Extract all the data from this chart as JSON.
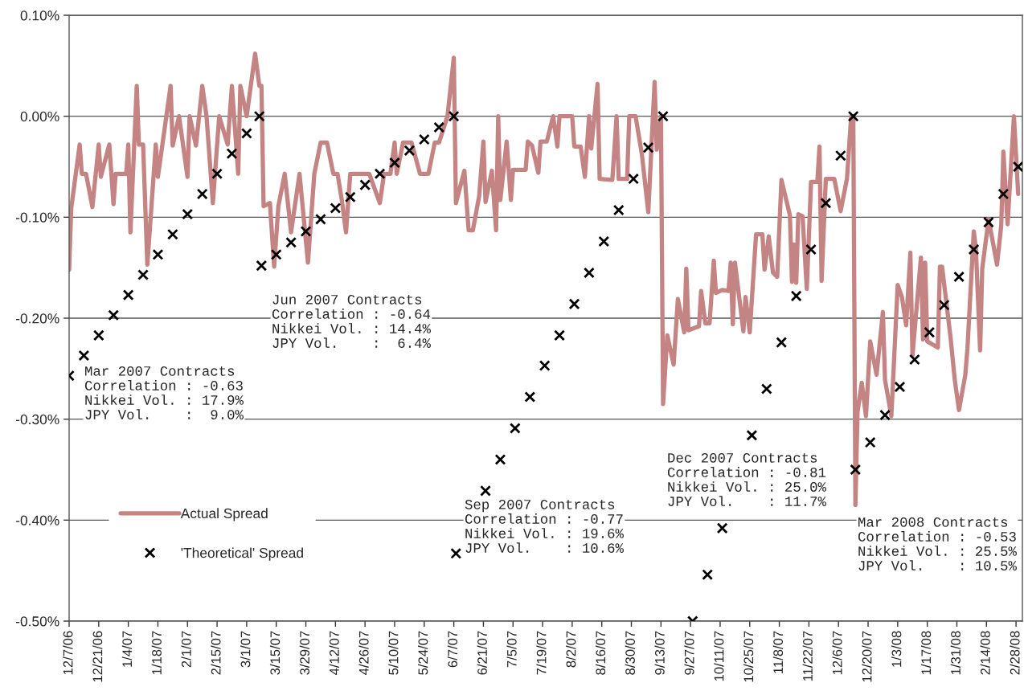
{
  "chart_data": {
    "type": "line",
    "ylim": [
      -0.5,
      0.1
    ],
    "yticks": [
      {
        "value": -0.5,
        "label": "-0.50%"
      },
      {
        "value": -0.4,
        "label": "-0.40%"
      },
      {
        "value": -0.3,
        "label": "-0.30%"
      },
      {
        "value": -0.2,
        "label": "-0.20%"
      },
      {
        "value": -0.1,
        "label": "-0.10%"
      },
      {
        "value": 0,
        "label": "0.00%"
      },
      {
        "value": 0.1,
        "label": "0.10%"
      }
    ],
    "xlim": [
      "2006-12-07",
      "2008-03-02"
    ],
    "xticks": [
      {
        "value": "2006-12-07",
        "label": "12/7/06"
      },
      {
        "value": "2006-12-21",
        "label": "12/21/06"
      },
      {
        "value": "2007-01-04",
        "label": "1/4/07"
      },
      {
        "value": "2007-01-18",
        "label": "1/18/07"
      },
      {
        "value": "2007-02-01",
        "label": "2/1/07"
      },
      {
        "value": "2007-02-15",
        "label": "2/15/07"
      },
      {
        "value": "2007-03-01",
        "label": "3/1/07"
      },
      {
        "value": "2007-03-15",
        "label": "3/15/07"
      },
      {
        "value": "2007-03-29",
        "label": "3/29/07"
      },
      {
        "value": "2007-04-12",
        "label": "4/12/07"
      },
      {
        "value": "2007-04-26",
        "label": "4/26/07"
      },
      {
        "value": "2007-05-10",
        "label": "5/10/07"
      },
      {
        "value": "2007-05-24",
        "label": "5/24/07"
      },
      {
        "value": "2007-06-07",
        "label": "6/7/07"
      },
      {
        "value": "2007-06-21",
        "label": "6/21/07"
      },
      {
        "value": "2007-07-05",
        "label": "7/5/07"
      },
      {
        "value": "2007-07-19",
        "label": "7/19/07"
      },
      {
        "value": "2007-08-02",
        "label": "8/2/07"
      },
      {
        "value": "2007-08-16",
        "label": "8/16/07"
      },
      {
        "value": "2007-08-30",
        "label": "8/30/07"
      },
      {
        "value": "2007-09-13",
        "label": "9/13/07"
      },
      {
        "value": "2007-09-27",
        "label": "9/27/07"
      },
      {
        "value": "2007-10-11",
        "label": "10/11/07"
      },
      {
        "value": "2007-10-25",
        "label": "10/25/07"
      },
      {
        "value": "2007-11-08",
        "label": "11/8/07"
      },
      {
        "value": "2007-11-22",
        "label": "11/22/07"
      },
      {
        "value": "2007-12-06",
        "label": "12/6/07"
      },
      {
        "value": "2007-12-20",
        "label": "12/20/07"
      },
      {
        "value": "2008-01-03",
        "label": "1/3/08"
      },
      {
        "value": "2008-01-17",
        "label": "1/17/08"
      },
      {
        "value": "2008-01-31",
        "label": "1/31/08"
      },
      {
        "value": "2008-02-14",
        "label": "2/14/08"
      },
      {
        "value": "2008-02-28",
        "label": "2/28/08"
      }
    ],
    "grid": "y",
    "legend": "bottom left",
    "annotations": [
      "Mar 2007 Contracts\nCorrelation : -0.63\nNikkei Vol. : 17.9%\nJPY Vol.    :  9.0%",
      "Jun 2007 Contracts\nCorrelation : -0.64\nNikkei Vol. : 14.4%\nJPY Vol.    :  6.4%",
      "Sep 2007 Contracts\nCorrelation : -0.77\nNikkei Vol. : 19.6%\nJPY Vol.    : 10.6%",
      "Dec 2007 Contracts\nCorrelation : -0.81\nNikkei Vol. : 25.0%\nJPY Vol.    : 11.7%",
      "Mar 2008 Contracts\nCorrelation : -0.53\nNikkei Vol. : 25.5%\nJPY Vol.    : 10.5%"
    ],
    "series": [
      {
        "name": "Actual Spread",
        "color": "#c48484",
        "line_style": "solid",
        "x": [
          "2006-12-07",
          "2006-12-08",
          "2006-12-12",
          "2006-12-13",
          "2006-12-15",
          "2006-12-18",
          "2006-12-21",
          "2006-12-22",
          "2006-12-26",
          "2006-12-28",
          "2006-12-29",
          "2007-01-03",
          "2007-01-04",
          "2007-01-05",
          "2007-01-08",
          "2007-01-09",
          "2007-01-11",
          "2007-01-13",
          "2007-01-17",
          "2007-01-18",
          "2007-01-22",
          "2007-01-24",
          "2007-01-25",
          "2007-01-28",
          "2007-02-01",
          "2007-02-02",
          "2007-02-05",
          "2007-02-08",
          "2007-02-10",
          "2007-02-13",
          "2007-02-16",
          "2007-02-20",
          "2007-02-22",
          "2007-02-25",
          "2007-02-26",
          "2007-03-01",
          "2007-03-05",
          "2007-03-07",
          "2007-03-08",
          "2007-03-09",
          "2007-03-12",
          "2007-03-14",
          "2007-03-16",
          "2007-03-19",
          "2007-03-22",
          "2007-03-26",
          "2007-03-30",
          "2007-04-02",
          "2007-04-05",
          "2007-04-08",
          "2007-04-11",
          "2007-04-13",
          "2007-04-15",
          "2007-04-17",
          "2007-04-19",
          "2007-04-28",
          "2007-05-03",
          "2007-05-05",
          "2007-05-08",
          "2007-05-10",
          "2007-05-11",
          "2007-05-14",
          "2007-05-18",
          "2007-05-22",
          "2007-05-26",
          "2007-05-29",
          "2007-05-31",
          "2007-06-04",
          "2007-06-07",
          "2007-06-08",
          "2007-06-12",
          "2007-06-14",
          "2007-06-16",
          "2007-06-19",
          "2007-06-21",
          "2007-06-22",
          "2007-06-25",
          "2007-06-27",
          "2007-06-28",
          "2007-06-29",
          "2007-07-02",
          "2007-07-04",
          "2007-07-05",
          "2007-07-11",
          "2007-07-12",
          "2007-07-14",
          "2007-07-17",
          "2007-07-18",
          "2007-07-21",
          "2007-07-24",
          "2007-07-26",
          "2007-07-27",
          "2007-08-02",
          "2007-08-03",
          "2007-08-06",
          "2007-08-08",
          "2007-08-10",
          "2007-08-11",
          "2007-08-14",
          "2007-08-15",
          "2007-08-21",
          "2007-08-23",
          "2007-08-24",
          "2007-08-28",
          "2007-08-29",
          "2007-09-01",
          "2007-09-04",
          "2007-09-07",
          "2007-09-10",
          "2007-09-11",
          "2007-09-13",
          "2007-09-14",
          "2007-09-16",
          "2007-09-19",
          "2007-09-21",
          "2007-09-24",
          "2007-09-25",
          "2007-09-26",
          "2007-10-01",
          "2007-10-02",
          "2007-10-04",
          "2007-10-06",
          "2007-10-08",
          "2007-10-09",
          "2007-10-12",
          "2007-10-15",
          "2007-10-16",
          "2007-10-17",
          "2007-10-18",
          "2007-10-22",
          "2007-10-23",
          "2007-10-25",
          "2007-10-28",
          "2007-10-31",
          "2007-11-01",
          "2007-11-03",
          "2007-11-05",
          "2007-11-07",
          "2007-11-09",
          "2007-11-13",
          "2007-11-14",
          "2007-11-15",
          "2007-11-16",
          "2007-11-17",
          "2007-11-19",
          "2007-11-21",
          "2007-11-23",
          "2007-11-26",
          "2007-11-27",
          "2007-11-28",
          "2007-11-30",
          "2007-12-04",
          "2007-12-07",
          "2007-12-10",
          "2007-12-12",
          "2007-12-13",
          "2007-12-14",
          "2007-12-15",
          "2007-12-17",
          "2007-12-19",
          "2007-12-21",
          "2007-12-24",
          "2007-12-27",
          "2007-12-28",
          "2007-12-31",
          "2008-01-03",
          "2008-01-05",
          "2008-01-07",
          "2008-01-09",
          "2008-01-10",
          "2008-01-14",
          "2008-01-15",
          "2008-01-16",
          "2008-01-17",
          "2008-01-22",
          "2008-01-23",
          "2008-01-24",
          "2008-01-28",
          "2008-01-30",
          "2008-02-01",
          "2008-02-04",
          "2008-02-05",
          "2008-02-08",
          "2008-02-09",
          "2008-02-11",
          "2008-02-12",
          "2008-02-15",
          "2008-02-19",
          "2008-02-21",
          "2008-02-22",
          "2008-02-24",
          "2008-02-27",
          "2008-02-29"
        ],
        "values": [
          -0.152,
          -0.091,
          -0.028,
          -0.057,
          -0.057,
          -0.09,
          -0.028,
          -0.06,
          -0.028,
          -0.087,
          -0.057,
          -0.057,
          -0.028,
          -0.115,
          0.03,
          -0.028,
          -0.028,
          -0.147,
          -0.028,
          -0.06,
          0.0,
          0.03,
          -0.029,
          0.0,
          -0.06,
          0.0,
          -0.029,
          0.03,
          0.0,
          -0.086,
          0.0,
          -0.028,
          0.03,
          -0.057,
          0.03,
          0.0,
          0.062,
          0.03,
          0.03,
          -0.089,
          -0.086,
          -0.149,
          -0.089,
          -0.057,
          -0.115,
          -0.057,
          -0.145,
          -0.057,
          -0.026,
          -0.026,
          -0.057,
          -0.057,
          -0.083,
          -0.115,
          -0.057,
          -0.057,
          -0.086,
          -0.057,
          -0.057,
          -0.026,
          -0.057,
          -0.026,
          -0.026,
          -0.057,
          -0.057,
          -0.026,
          -0.026,
          0.0,
          0.058,
          -0.086,
          -0.054,
          -0.113,
          -0.113,
          -0.079,
          -0.025,
          -0.085,
          -0.054,
          -0.113,
          0.0,
          -0.083,
          -0.025,
          -0.083,
          -0.053,
          -0.053,
          -0.025,
          -0.029,
          -0.056,
          -0.025,
          -0.025,
          0.0,
          -0.03,
          0.0,
          0.0,
          -0.03,
          -0.03,
          -0.06,
          0.0,
          -0.032,
          0.032,
          -0.062,
          -0.063,
          0.0,
          -0.062,
          -0.062,
          0.0,
          0.0,
          -0.038,
          -0.095,
          0.034,
          -0.033,
          0.0,
          -0.285,
          -0.217,
          -0.246,
          -0.181,
          -0.214,
          -0.151,
          -0.212,
          -0.208,
          -0.173,
          -0.205,
          -0.205,
          -0.143,
          -0.175,
          -0.172,
          -0.173,
          -0.145,
          -0.206,
          -0.145,
          -0.213,
          -0.179,
          -0.214,
          -0.117,
          -0.117,
          -0.152,
          -0.119,
          -0.155,
          -0.159,
          -0.063,
          -0.098,
          -0.164,
          -0.127,
          -0.165,
          -0.097,
          -0.099,
          -0.171,
          -0.065,
          -0.065,
          -0.03,
          -0.163,
          -0.062,
          -0.062,
          -0.094,
          -0.062,
          0.0,
          0.0,
          -0.385,
          -0.293,
          -0.264,
          -0.297,
          -0.223,
          -0.256,
          -0.194,
          -0.261,
          -0.297,
          -0.167,
          -0.179,
          -0.207,
          -0.135,
          -0.237,
          -0.14,
          -0.221,
          -0.145,
          -0.223,
          -0.229,
          -0.149,
          -0.149,
          -0.219,
          -0.261,
          -0.291,
          -0.256,
          -0.23,
          -0.114,
          -0.131,
          -0.232,
          -0.151,
          -0.102,
          -0.147,
          -0.108,
          -0.035,
          -0.107,
          0.0,
          -0.077
        ]
      },
      {
        "name": "'Theoretical' Spread",
        "type": "scatter",
        "color": "#000000",
        "marker": "cross",
        "x": [
          "2006-12-07",
          "2006-12-14",
          "2006-12-21",
          "2006-12-28",
          "2007-01-04",
          "2007-01-11",
          "2007-01-18",
          "2007-01-25",
          "2007-02-01",
          "2007-02-08",
          "2007-02-15",
          "2007-02-22",
          "2007-03-01",
          "2007-03-07",
          "2007-03-08",
          "2007-03-15",
          "2007-03-22",
          "2007-03-29",
          "2007-04-05",
          "2007-04-12",
          "2007-04-19",
          "2007-04-26",
          "2007-05-03",
          "2007-05-10",
          "2007-05-17",
          "2007-05-24",
          "2007-05-31",
          "2007-06-07",
          "2007-06-08",
          "2007-06-22",
          "2007-06-29",
          "2007-07-06",
          "2007-07-13",
          "2007-07-20",
          "2007-07-27",
          "2007-08-03",
          "2007-08-10",
          "2007-08-17",
          "2007-08-24",
          "2007-08-31",
          "2007-09-07",
          "2007-09-14",
          "2007-09-28",
          "2007-10-05",
          "2007-10-12",
          "2007-10-26",
          "2007-11-02",
          "2007-11-09",
          "2007-11-16",
          "2007-11-23",
          "2007-11-30",
          "2007-12-07",
          "2007-12-13",
          "2007-12-14",
          "2007-12-21",
          "2007-12-28",
          "2008-01-04",
          "2008-01-11",
          "2008-01-18",
          "2008-01-25",
          "2008-02-01",
          "2008-02-08",
          "2008-02-15",
          "2008-02-22",
          "2008-02-29"
        ],
        "values": [
          -0.257,
          -0.237,
          -0.217,
          -0.197,
          -0.177,
          -0.157,
          -0.137,
          -0.117,
          -0.097,
          -0.077,
          -0.057,
          -0.037,
          -0.017,
          0.0,
          -0.148,
          -0.137,
          -0.125,
          -0.114,
          -0.102,
          -0.091,
          -0.08,
          -0.068,
          -0.057,
          -0.046,
          -0.034,
          -0.023,
          -0.011,
          0.0,
          -0.433,
          -0.371,
          -0.34,
          -0.309,
          -0.278,
          -0.247,
          -0.217,
          -0.186,
          -0.155,
          -0.124,
          -0.093,
          -0.062,
          -0.031,
          0.0,
          -0.5,
          -0.454,
          -0.408,
          -0.316,
          -0.27,
          -0.224,
          -0.178,
          -0.132,
          -0.086,
          -0.039,
          0.0,
          -0.35,
          -0.323,
          -0.296,
          -0.268,
          -0.241,
          -0.214,
          -0.187,
          -0.159,
          -0.132,
          -0.105,
          -0.077,
          -0.05
        ]
      }
    ]
  }
}
